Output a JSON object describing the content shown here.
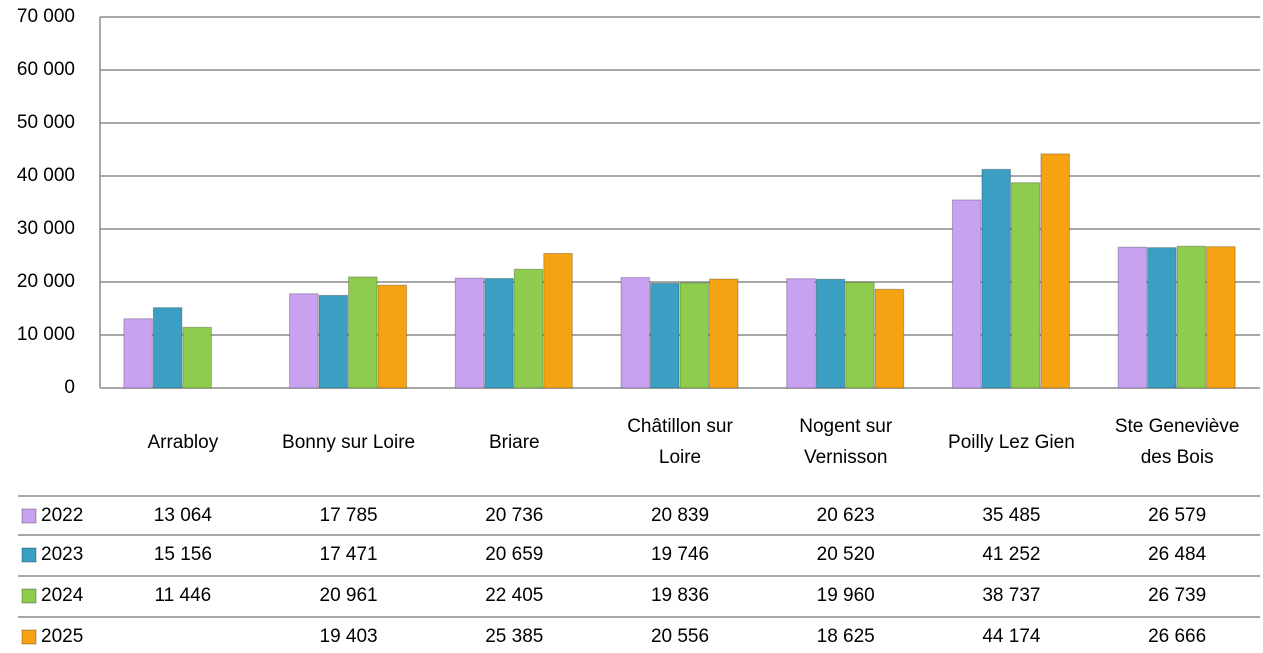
{
  "chart_data": {
    "type": "bar",
    "categories": [
      "Arrabloy",
      "Bonny sur Loire",
      "Briare",
      "Châtillon sur Loire",
      "Nogent sur Vernisson",
      "Poilly Lez Gien",
      "Ste Geneviève des Bois"
    ],
    "series": [
      {
        "name": "2022",
        "color": "#c8a2f0",
        "values": [
          13064,
          17785,
          20736,
          20839,
          20623,
          35485,
          26579
        ],
        "value_labels": [
          "13 064",
          "17 785",
          "20 736",
          "20 839",
          "20 623",
          "35 485",
          "26 579"
        ]
      },
      {
        "name": "2023",
        "color": "#3a9fc2",
        "values": [
          15156,
          17471,
          20659,
          19746,
          20520,
          41252,
          26484
        ],
        "value_labels": [
          "15 156",
          "17 471",
          "20 659",
          "19 746",
          "20 520",
          "41 252",
          "26 484"
        ]
      },
      {
        "name": "2024",
        "color": "#8dcc4c",
        "values": [
          11446,
          20961,
          22405,
          19836,
          19960,
          38737,
          26739
        ],
        "value_labels": [
          "11 446",
          "20 961",
          "22 405",
          "19 836",
          "19 960",
          "38 737",
          "26 739"
        ]
      },
      {
        "name": "2025",
        "color": "#f5a313",
        "values": [
          null,
          19403,
          25385,
          20556,
          18625,
          44174,
          26666
        ],
        "value_labels": [
          null,
          "19 403",
          "25 385",
          "20 556",
          "18 625",
          "44 174",
          "26 666"
        ]
      }
    ],
    "ylim": [
      0,
      70000
    ],
    "yticks": [
      0,
      {
        "value": 10000,
        "label": "10 000"
      },
      {
        "value": 20000,
        "label": "20 000"
      },
      {
        "value": 30000,
        "label": "30 000"
      },
      {
        "value": 40000,
        "label": "40 000"
      },
      {
        "value": 50000,
        "label": "50 000"
      },
      {
        "value": 60000,
        "label": "60 000"
      },
      {
        "value": 70000,
        "label": "70 000"
      }
    ],
    "grid": true
  }
}
